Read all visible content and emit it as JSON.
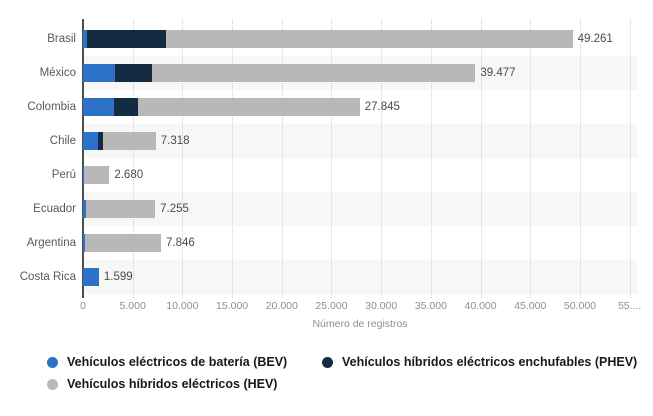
{
  "chart_data": {
    "type": "bar",
    "orientation": "horizontal",
    "stacked": true,
    "title": "",
    "xlabel": "Número de registros",
    "ylabel": "",
    "xlim": [
      0,
      55000
    ],
    "grid": "vertical-dotted",
    "legend_position": "bottom-two-column",
    "categories": [
      "Brasil",
      "México",
      "Colombia",
      "Chile",
      "Perú",
      "Ecuador",
      "Argentina",
      "Costa Rica"
    ],
    "series": [
      {
        "name": "Vehículos eléctricos de batería (BEV)",
        "color": "#2d72c8",
        "values": [
          400,
          3220,
          3120,
          1510,
          150,
          300,
          250,
          1599
        ]
      },
      {
        "name": "Vehículos híbridos eléctricos enchufables (PHEV)",
        "color": "#142b42",
        "values": [
          7950,
          3720,
          2415,
          470,
          30,
          0,
          0,
          0
        ]
      },
      {
        "name": "Vehículos híbridos eléctricos (HEV)",
        "color": "#b8b8b8",
        "values": [
          40911,
          32537,
          22310,
          5338,
          2500,
          6955,
          7596,
          0
        ]
      }
    ],
    "totals": [
      49261,
      39477,
      27845,
      7318,
      2680,
      7255,
      7846,
      1599
    ],
    "total_labels": [
      "49.261",
      "39.477",
      "27.845",
      "7.318",
      "2.680",
      "7.255",
      "7.846",
      "1.599"
    ],
    "x_ticks": [
      0,
      5000,
      10000,
      15000,
      20000,
      25000,
      30000,
      35000,
      40000,
      45000,
      50000,
      55000
    ],
    "x_tick_labels": [
      "0",
      "5.000",
      "10.000",
      "15.000",
      "20.000",
      "25.000",
      "30.000",
      "35.000",
      "40.000",
      "45.000",
      "50.000",
      "55...."
    ]
  },
  "legend": {
    "items": [
      {
        "label": "Vehículos eléctricos de batería (BEV)",
        "color": "#2d72c8",
        "col": "left",
        "row": 0
      },
      {
        "label": "Vehículos híbridos eléctricos enchufables (PHEV)",
        "color": "#142b42",
        "col": "right",
        "row": 0
      },
      {
        "label": "Vehículos híbridos eléctricos (HEV)",
        "color": "#b8b8b8",
        "col": "left",
        "row": 1
      }
    ]
  },
  "colors": {
    "background": "#ffffff",
    "row_band": "#f7f7f7",
    "gridline": "#cfcfcf",
    "axis_line": "#4d4d4d",
    "category_label": "#595959",
    "value_label": "#4a4a4a",
    "tick_label": "#8e8e8e",
    "legend_text": "#17191e"
  }
}
